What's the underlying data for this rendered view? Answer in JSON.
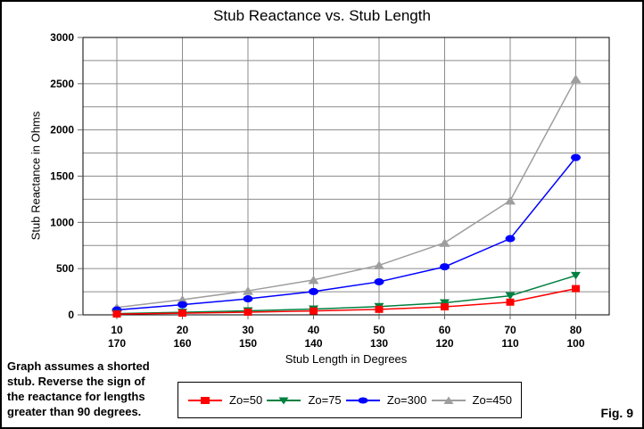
{
  "frame": {
    "fig_label": "Fig. 9"
  },
  "chart_data": {
    "type": "line",
    "title": "Stub Reactance vs. Stub Length",
    "xlabel": "Stub Length in Degrees",
    "ylabel": "Stub Reactance in Ohms",
    "x_categories_row1": [
      "10",
      "20",
      "30",
      "40",
      "50",
      "60",
      "70",
      "80"
    ],
    "x_categories_row2": [
      "170",
      "160",
      "150",
      "140",
      "130",
      "120",
      "110",
      "100"
    ],
    "ylim": [
      0,
      3000
    ],
    "y_major_step": 500,
    "y_minor_step": 250,
    "grid": true,
    "legend_position": "bottom",
    "plot_border_color": "#000000",
    "grid_color": "#8c8c8c",
    "series": [
      {
        "label": "Zo=50",
        "color": "#ff0000",
        "marker": "square",
        "values": [
          8.8,
          18.2,
          28.9,
          42.0,
          59.6,
          86.6,
          137.4,
          283.6
        ]
      },
      {
        "label": "Zo=75",
        "color": "#008040",
        "marker": "triangle-down",
        "values": [
          13.2,
          27.3,
          43.3,
          62.9,
          89.4,
          129.9,
          206.1,
          425.3
        ]
      },
      {
        "label": "Zo=300",
        "color": "#0000ff",
        "marker": "ellipse",
        "values": [
          52.9,
          109.2,
          173.2,
          251.8,
          357.5,
          519.6,
          824.2,
          1701.3
        ]
      },
      {
        "label": "Zo=450",
        "color": "#9e9e9e",
        "marker": "triangle-up",
        "values": [
          79.4,
          163.8,
          259.8,
          377.6,
          536.3,
          779.4,
          1236.4,
          2552.0
        ]
      }
    ]
  },
  "note": {
    "text": "Graph assumes a shorted\nstub. Reverse the sign of\nthe reactance for lengths\ngreater than 90 degrees."
  }
}
